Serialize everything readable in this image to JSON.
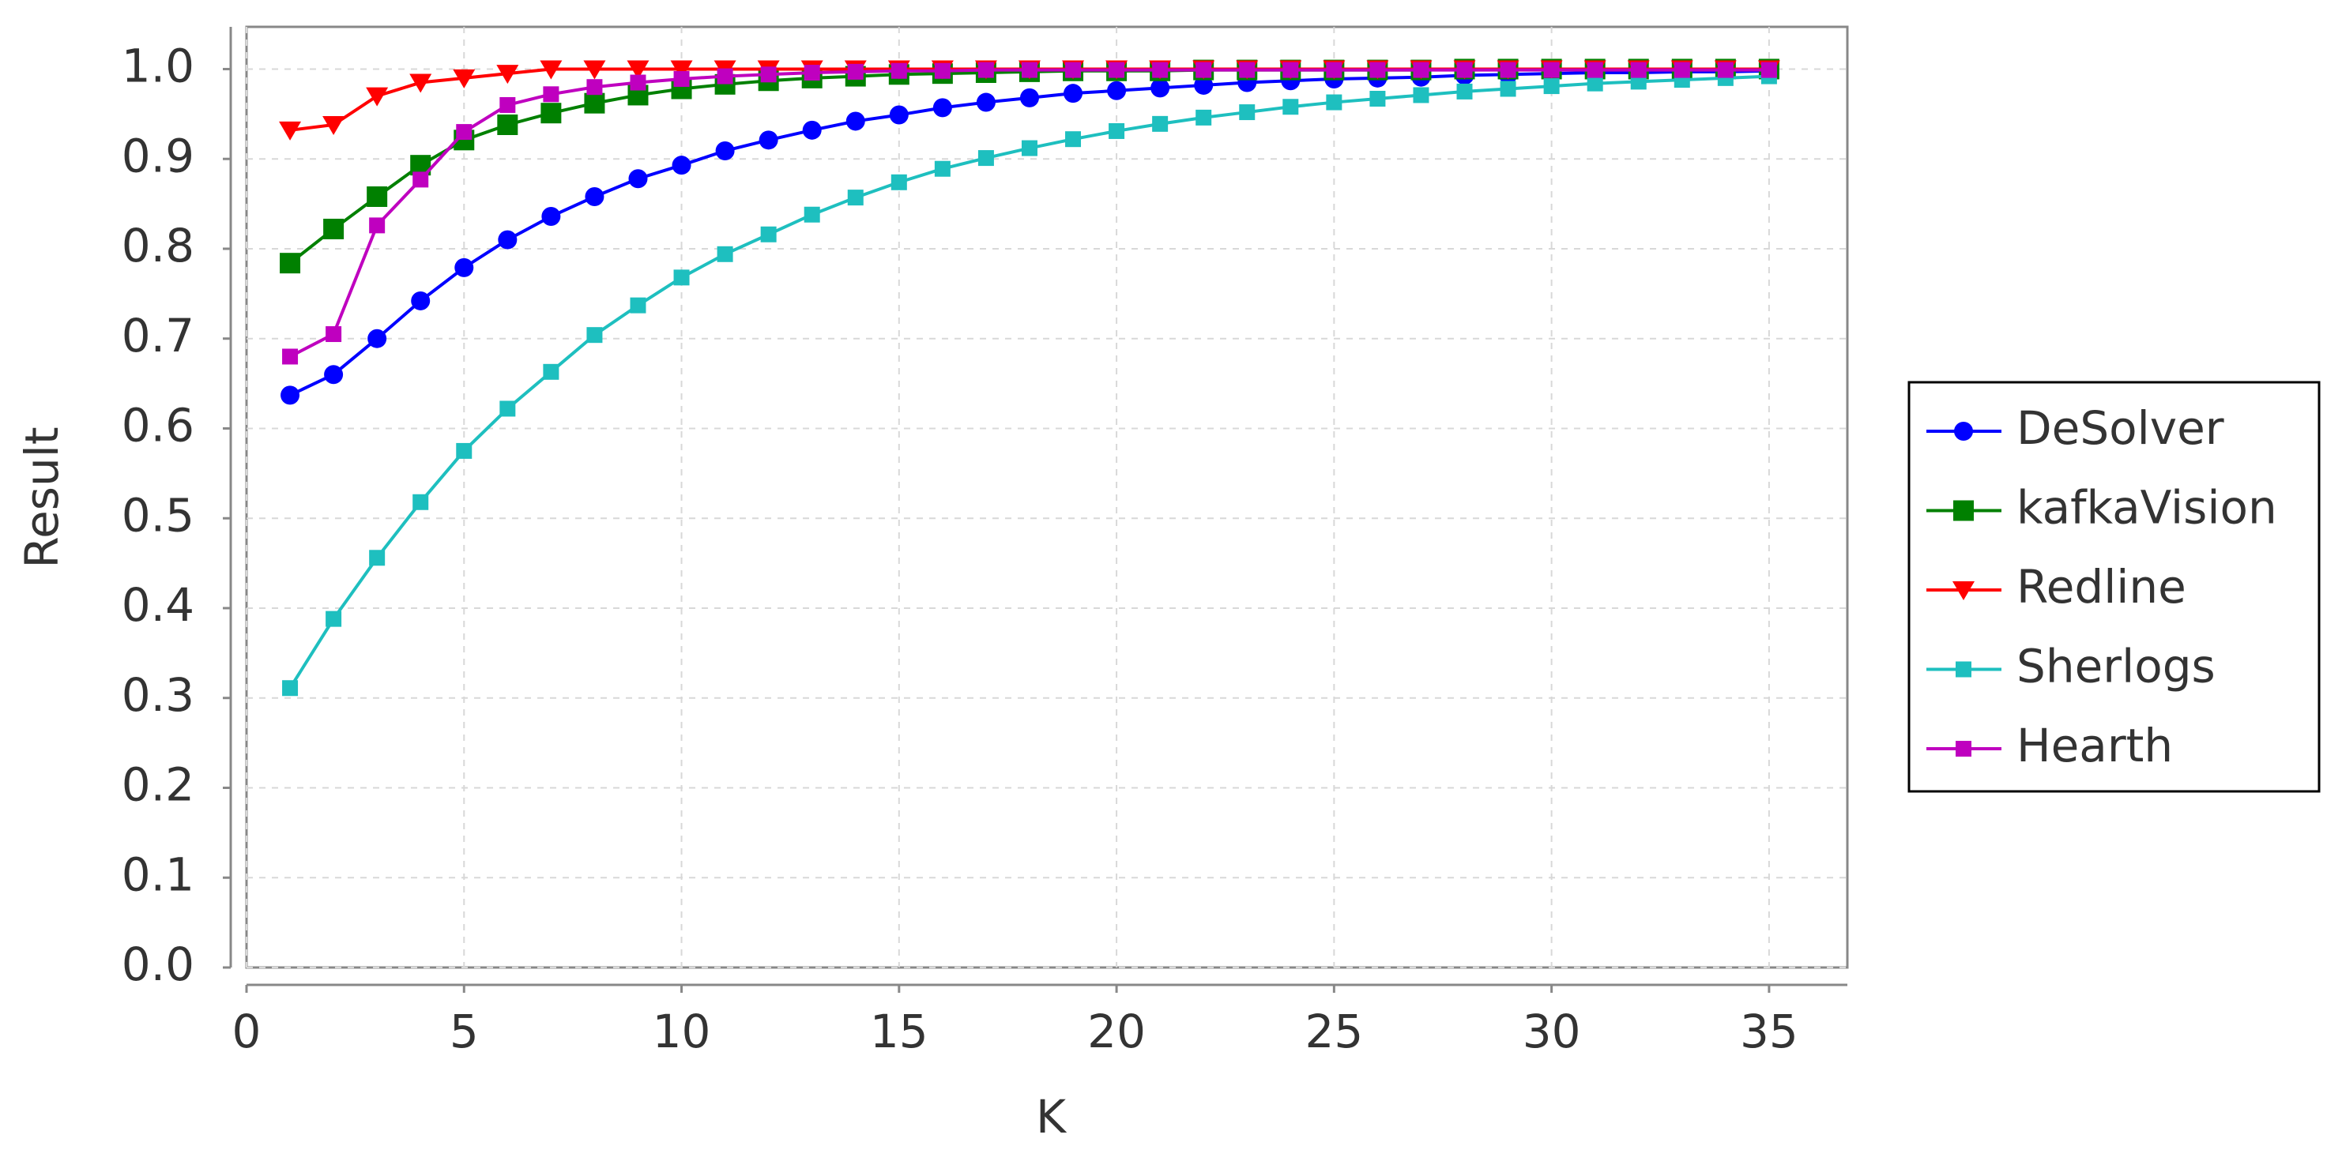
{
  "chart_data": {
    "type": "line",
    "xlabel": "K",
    "ylabel": "Result",
    "x": [
      1,
      2,
      3,
      4,
      5,
      6,
      7,
      8,
      9,
      10,
      11,
      12,
      13,
      14,
      15,
      16,
      17,
      18,
      19,
      20,
      21,
      22,
      23,
      24,
      25,
      26,
      27,
      28,
      29,
      30,
      31,
      32,
      33,
      34,
      35
    ],
    "series": [
      {
        "name": "DeSolver",
        "color": "#0000ff",
        "marker": "circle",
        "values": [
          0.637,
          0.66,
          0.7,
          0.742,
          0.779,
          0.81,
          0.836,
          0.858,
          0.878,
          0.893,
          0.909,
          0.921,
          0.932,
          0.942,
          0.949,
          0.957,
          0.963,
          0.968,
          0.973,
          0.976,
          0.979,
          0.982,
          0.985,
          0.987,
          0.989,
          0.99,
          0.991,
          0.993,
          0.994,
          0.995,
          0.996,
          0.996,
          0.997,
          0.997,
          0.998
        ]
      },
      {
        "name": "kafkaVision",
        "color": "#008000",
        "marker": "square",
        "values": [
          0.784,
          0.822,
          0.858,
          0.893,
          0.921,
          0.938,
          0.951,
          0.962,
          0.971,
          0.978,
          0.983,
          0.987,
          0.99,
          0.992,
          0.994,
          0.995,
          0.996,
          0.997,
          0.998,
          0.998,
          0.998,
          0.999,
          0.999,
          0.999,
          0.999,
          0.999,
          0.999,
          1.0,
          1.0,
          1.0,
          1.0,
          1.0,
          1.0,
          1.0,
          1.0
        ]
      },
      {
        "name": "Redline",
        "color": "#ff0000",
        "marker": "triangle-down",
        "values": [
          0.932,
          0.938,
          0.97,
          0.985,
          0.99,
          0.995,
          1.0,
          1.0,
          1.0,
          1.0,
          1.0,
          1.0,
          1.0,
          1.0,
          1.0,
          1.0,
          1.0,
          1.0,
          1.0,
          1.0,
          1.0,
          1.0,
          1.0,
          1.0,
          1.0,
          1.0,
          1.0,
          1.0,
          1.0,
          1.0,
          1.0,
          1.0,
          1.0,
          1.0,
          1.0
        ]
      },
      {
        "name": "Sherlogs",
        "color": "#1ebfbf",
        "marker": "small-square",
        "values": [
          0.311,
          0.388,
          0.456,
          0.518,
          0.575,
          0.622,
          0.663,
          0.704,
          0.737,
          0.768,
          0.794,
          0.816,
          0.838,
          0.857,
          0.874,
          0.889,
          0.901,
          0.912,
          0.922,
          0.931,
          0.939,
          0.946,
          0.952,
          0.958,
          0.963,
          0.967,
          0.971,
          0.975,
          0.978,
          0.981,
          0.984,
          0.986,
          0.988,
          0.99,
          0.992
        ]
      },
      {
        "name": "Hearth",
        "color": "#bf00bf",
        "marker": "small-square",
        "values": [
          0.68,
          0.705,
          0.826,
          0.877,
          0.93,
          0.96,
          0.972,
          0.98,
          0.985,
          0.989,
          0.992,
          0.994,
          0.996,
          0.997,
          0.998,
          0.998,
          0.999,
          0.999,
          0.999,
          0.999,
          0.999,
          0.999,
          0.999,
          0.999,
          0.999,
          0.999,
          0.999,
          0.999,
          0.999,
          0.999,
          0.999,
          0.999,
          0.999,
          0.999,
          0.999
        ]
      }
    ],
    "xlim": [
      0,
      36.8
    ],
    "ylim": [
      0,
      1.047
    ],
    "xticks": [
      0,
      5,
      10,
      15,
      20,
      25,
      30,
      35
    ],
    "yticks": [
      {
        "value": 0,
        "label": "0.0"
      },
      0.1,
      0.2,
      0.3,
      0.4,
      0.5,
      0.6,
      0.7,
      0.8,
      0.9,
      {
        "value": 1,
        "label": "1.0"
      }
    ],
    "grid": true,
    "legend": "right"
  }
}
